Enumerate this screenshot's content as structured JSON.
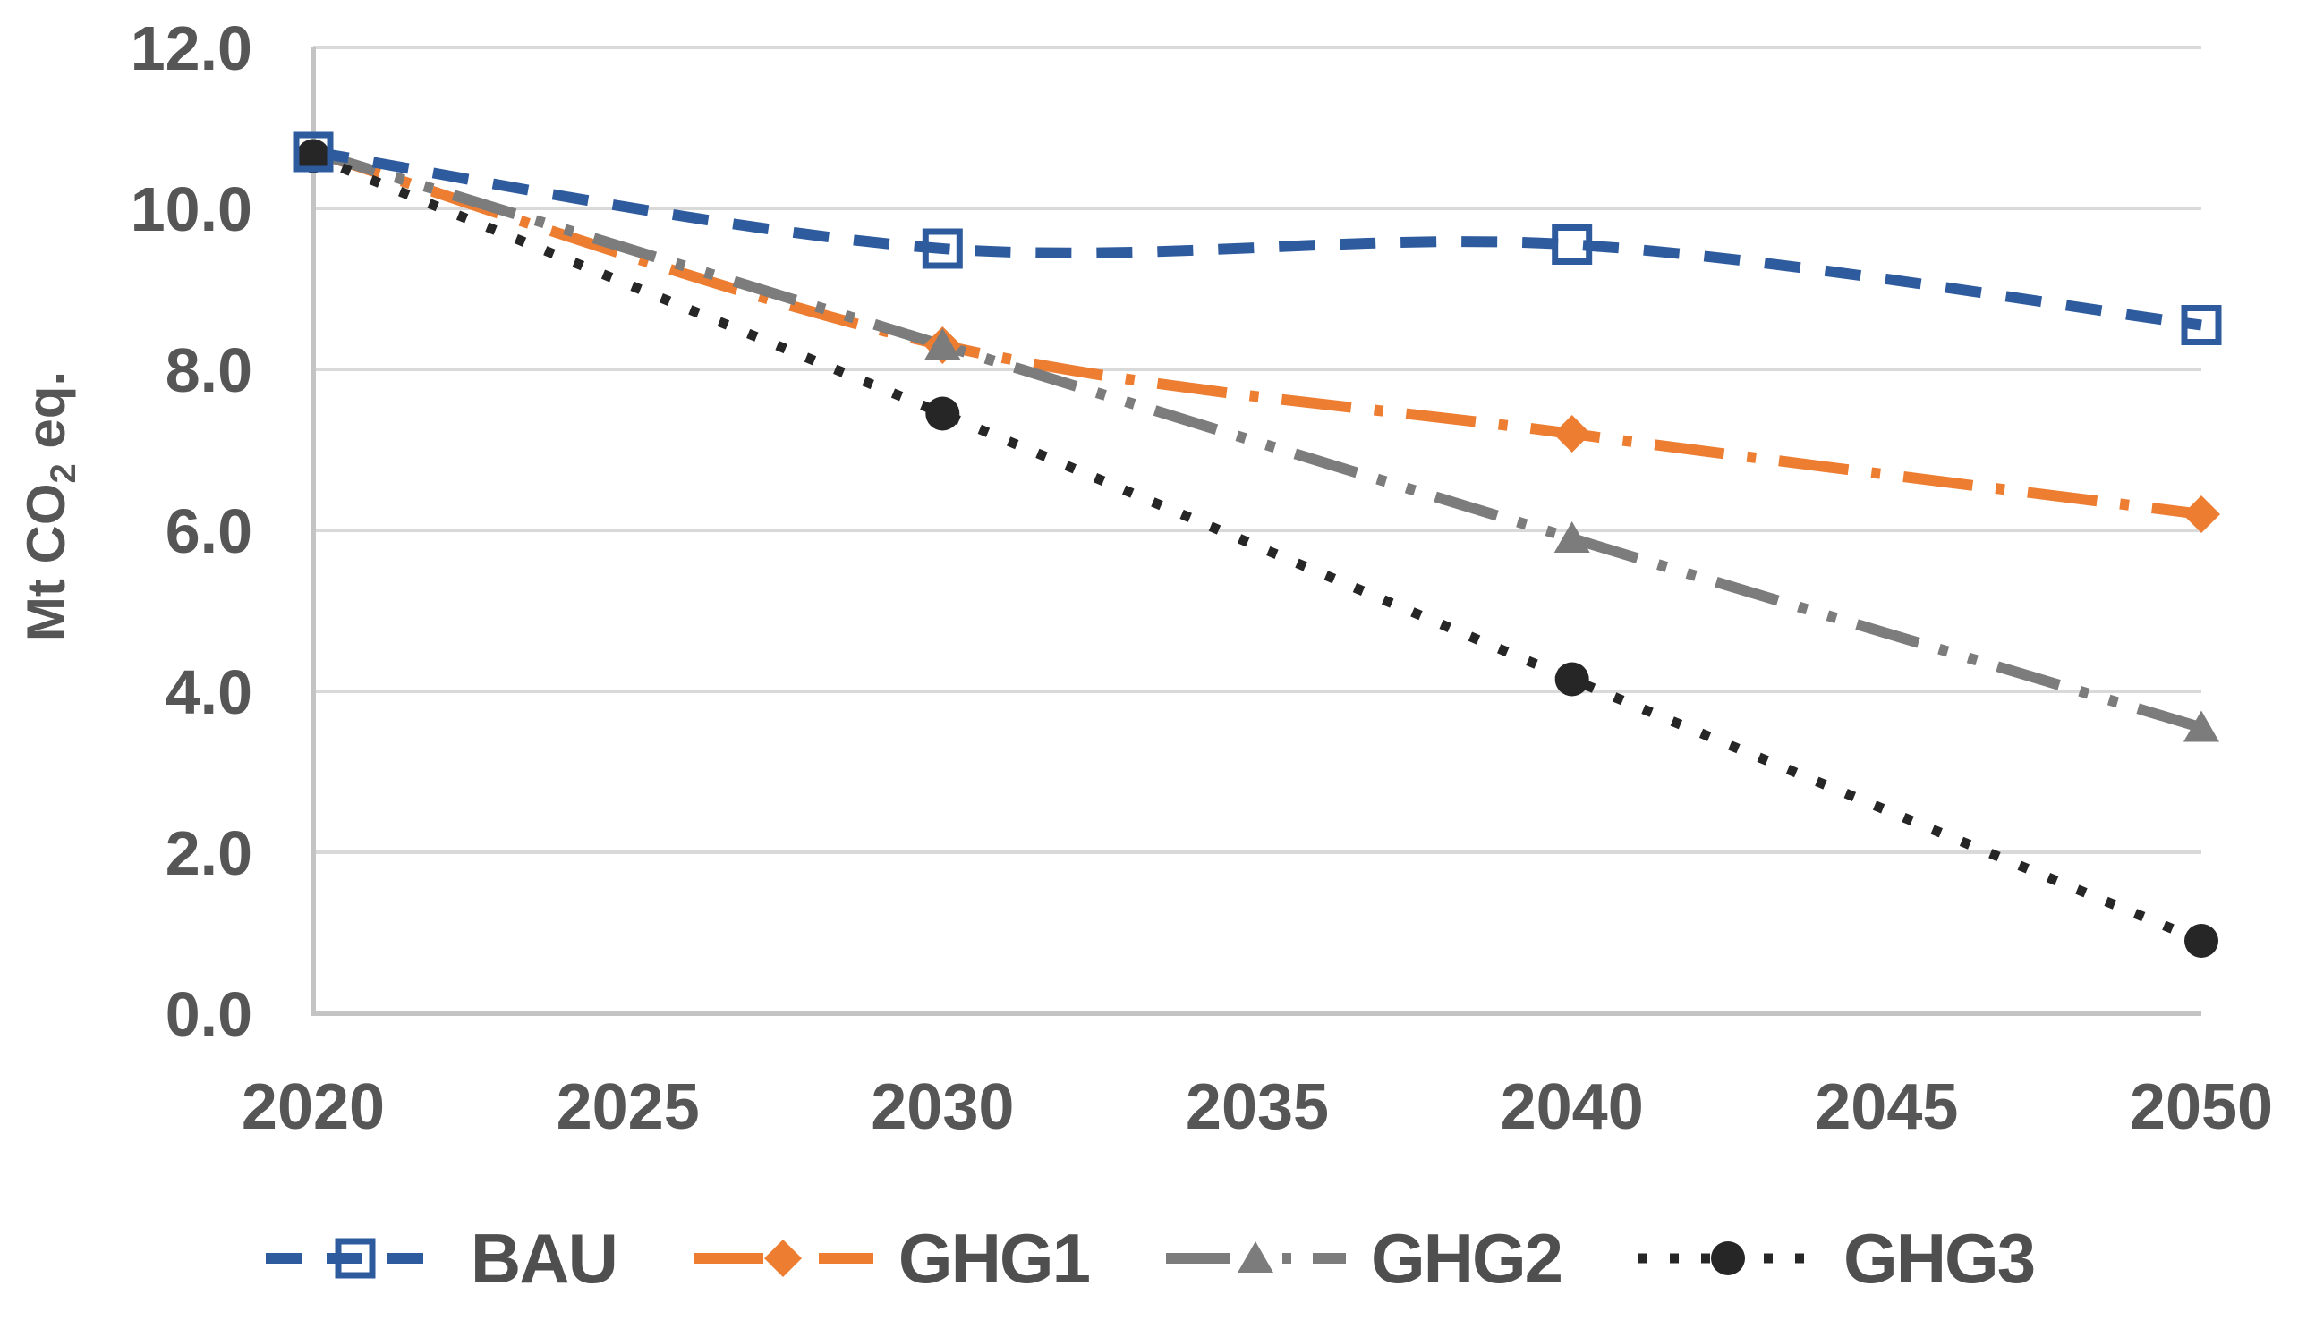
{
  "page": {
    "background": "#ffffff"
  },
  "colors": {
    "grid": "#D9D9D9",
    "axis": "#C4C4C4",
    "tick_text": "#565656",
    "legend_text": "#4F4F4F"
  },
  "axes": {
    "y_title_pre": "Mt CO",
    "y_title_sub": "2",
    "y_title_post": " eq.",
    "y_tick_labels": [
      "0.0",
      "2.0",
      "4.0",
      "6.0",
      "8.0",
      "10.0",
      "12.0"
    ],
    "x_tick_labels": [
      "2020",
      "2025",
      "2030",
      "2035",
      "2040",
      "2045",
      "2050"
    ]
  },
  "chart_data": {
    "type": "line",
    "title": "",
    "xlabel": "",
    "ylabel": "Mt CO2 eq.",
    "x": [
      2020,
      2030,
      2040,
      2050
    ],
    "xlim": [
      2020,
      2050
    ],
    "ylim": [
      0,
      12
    ],
    "grid": true,
    "smooth": true,
    "legend_position": "bottom",
    "series": [
      {
        "name": "BAU",
        "values": [
          10.7,
          9.5,
          9.55,
          8.55
        ],
        "color": "#2E5B9E",
        "dash": "40 28",
        "width": 12,
        "marker": "square-open",
        "markers_at": [
          0,
          1,
          2,
          3
        ],
        "z": 4
      },
      {
        "name": "GHG1",
        "values": [
          10.7,
          8.3,
          7.2,
          6.2
        ],
        "color": "#ED7D31",
        "dash": "78 26 10 26",
        "width": 12,
        "marker": "diamond",
        "markers_at": [
          1,
          2,
          3
        ],
        "z": 1
      },
      {
        "name": "GHG2",
        "values": [
          10.7,
          8.3,
          5.9,
          3.55
        ],
        "color": "#7C7C7C",
        "dash": "72 24 10 24 10 24",
        "width": 12,
        "marker": "triangle",
        "markers_at": [
          1,
          2,
          3
        ],
        "z": 2
      },
      {
        "name": "GHG3",
        "values": [
          10.65,
          7.45,
          4.15,
          0.9
        ],
        "color": "#262626",
        "dash": "10 25",
        "width": 11,
        "marker": "circle",
        "markers_at": [
          0,
          1,
          2,
          3
        ],
        "z": 3
      }
    ]
  }
}
